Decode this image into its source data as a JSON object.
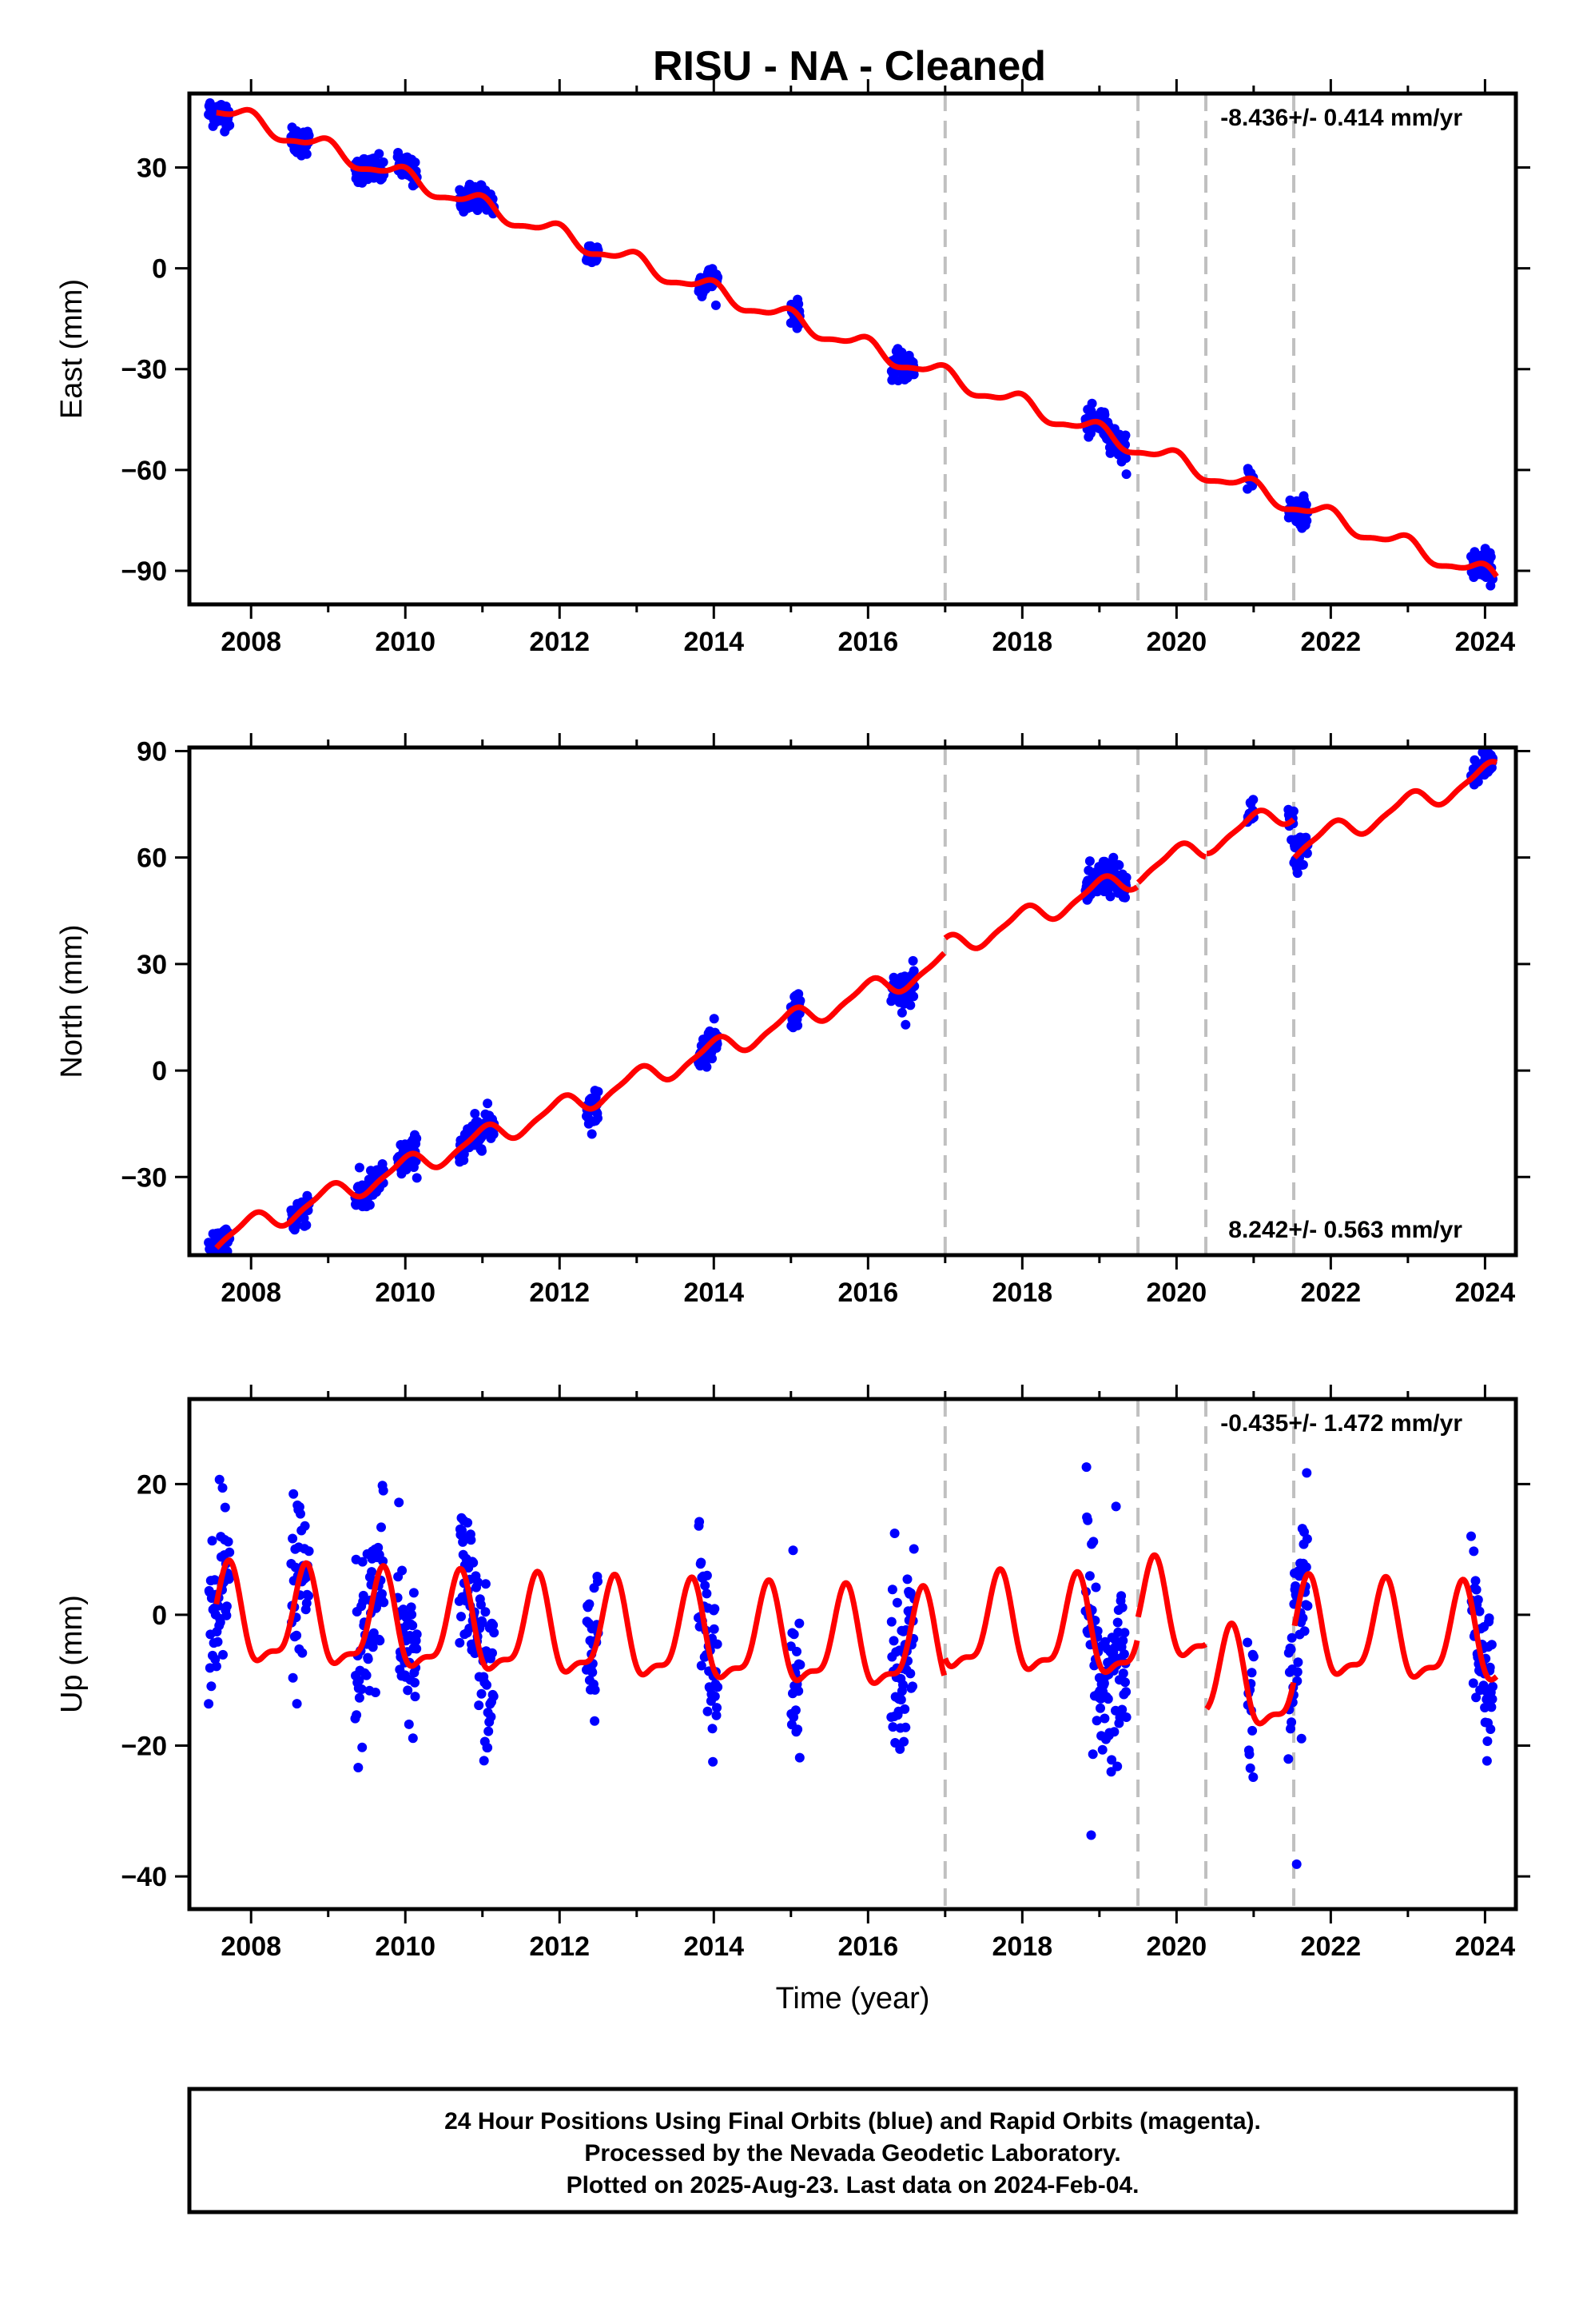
{
  "chart_data": {
    "type": "scatter",
    "title": "RISU  - NA - Cleaned",
    "xlabel": "Time (year)",
    "xlim": [
      2007.2,
      2024.4
    ],
    "x_ticks": [
      2008,
      2010,
      2012,
      2014,
      2016,
      2018,
      2020,
      2022,
      2024
    ],
    "x_tick_labels": [
      "2008",
      "2010",
      "2012",
      "2014",
      "2016",
      "2018",
      "2020",
      "2022",
      "2024"
    ],
    "breaks": [
      2017.0,
      2019.5,
      2020.38,
      2021.52
    ],
    "series_colors": {
      "final_orbits": "#0000ff",
      "model": "#ff0000",
      "breaks": "#c0c0c0"
    },
    "segments": [
      [
        2007.45,
        2007.72
      ],
      [
        2008.52,
        2008.75
      ],
      [
        2009.35,
        2009.72
      ],
      [
        2009.9,
        2010.15
      ],
      [
        2010.7,
        2011.15
      ],
      [
        2012.35,
        2012.5
      ],
      [
        2013.8,
        2014.05
      ],
      [
        2015.0,
        2015.12
      ],
      [
        2016.3,
        2016.6
      ],
      [
        2018.82,
        2019.35
      ],
      [
        2020.92,
        2021.0
      ],
      [
        2021.45,
        2021.7
      ],
      [
        2023.82,
        2024.1
      ]
    ],
    "panels": [
      {
        "id": "east",
        "ylabel": "East (mm)",
        "ylim": [
          -100,
          52
        ],
        "y_ticks": [
          30,
          0,
          -30,
          -60,
          -90
        ],
        "y_tick_labels": [
          "30",
          "0",
          "−30",
          "−60",
          "−90"
        ],
        "rate_text": "-8.436+/- 0.414 mm/yr",
        "rate_position": "top-right",
        "model": {
          "t0": 2007.5,
          "y0": 48,
          "rate": -8.436,
          "annual_amp": 2.5,
          "annual_phase": 0.3,
          "semi_amp": 0.8,
          "semi_phase": 0.1,
          "offsets": []
        },
        "scatter_spread": 2.0
      },
      {
        "id": "north",
        "ylabel": "North (mm)",
        "ylim": [
          -52,
          91
        ],
        "y_ticks": [
          90,
          60,
          30,
          0,
          -30
        ],
        "y_tick_labels": [
          "90",
          "60",
          "30",
          "0",
          "−30"
        ],
        "rate_text": "8.242+/- 0.563 mm/yr",
        "rate_position": "bottom-right",
        "model": {
          "t0": 2007.5,
          "y0": -48,
          "rate": 8.242,
          "annual_amp": 3.0,
          "annual_phase": 0.25,
          "semi_amp": 0.8,
          "semi_phase": 0.0,
          "offsets": [
            [
              2017.0,
              4.0
            ],
            [
              2019.5,
              1.0
            ],
            [
              2020.38,
              1.0
            ],
            [
              2021.52,
              -11.0
            ]
          ]
        },
        "scatter_spread": 2.5
      },
      {
        "id": "up",
        "ylabel": "Up (mm)",
        "ylim": [
          -45,
          33
        ],
        "y_ticks": [
          20,
          0,
          -20,
          -40
        ],
        "y_tick_labels": [
          "20",
          "0",
          "−20",
          "−40"
        ],
        "rate_text": "-0.435+/- 1.472 mm/yr",
        "rate_position": "top-right",
        "model": {
          "t0": 2007.5,
          "y0": -1.0,
          "rate": -0.435,
          "annual_amp": 7.0,
          "annual_phase": 0.55,
          "semi_amp": 2.5,
          "semi_phase": 0.4,
          "offsets": [
            [
              2017.0,
              3.0
            ],
            [
              2019.5,
              3.0
            ],
            [
              2020.38,
              -10.0
            ],
            [
              2021.52,
              8.0
            ]
          ]
        },
        "scatter_spread": 6.0
      }
    ]
  },
  "footer": {
    "line1": "24 Hour Positions Using Final Orbits (blue) and Rapid Orbits (magenta).",
    "line2": "Processed by the Nevada Geodetic Laboratory.",
    "line3": "Plotted on 2025-Aug-23. Last data on 2024-Feb-04."
  }
}
